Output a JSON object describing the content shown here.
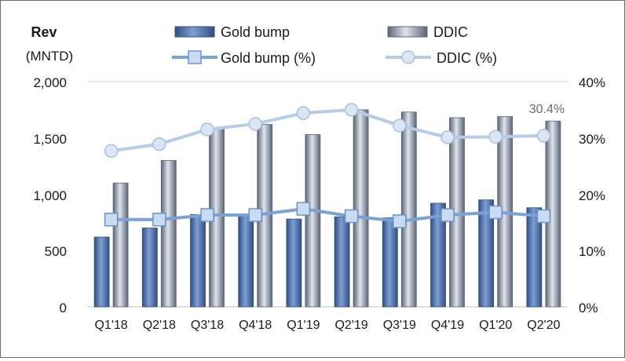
{
  "chart_data": {
    "type": "bar",
    "title": "",
    "ylabel": "Rev",
    "ylabel_unit": "(MNTD)",
    "categories": [
      "Q1'18",
      "Q2'18",
      "Q3'18",
      "Q4'18",
      "Q1'19",
      "Q2'19",
      "Q3'19",
      "Q4'19",
      "Q1'20",
      "Q2'20"
    ],
    "y_left_ticks": [
      "2,000",
      "1,500",
      "1,000",
      "500",
      "0"
    ],
    "y_right_ticks": [
      "40%",
      "30%",
      "20%",
      "10%",
      "0%"
    ],
    "ylim": [
      0,
      2000
    ],
    "y2lim": [
      0,
      40
    ],
    "grid": "horizontal-top-only",
    "legend_position": "top",
    "series": [
      {
        "name": "Gold bump",
        "kind": "bar",
        "axis": "left",
        "color": "#4f74b0",
        "values": [
          620,
          700,
          820,
          820,
          780,
          800,
          790,
          920,
          950,
          880
        ]
      },
      {
        "name": "DDIC",
        "kind": "bar",
        "axis": "left",
        "color": "#8c96a6",
        "values": [
          1100,
          1300,
          1580,
          1620,
          1530,
          1750,
          1730,
          1680,
          1690,
          1650
        ]
      },
      {
        "name": "Gold bump (%)",
        "kind": "line",
        "axis": "right",
        "color": "#7aa2d6",
        "marker": "square",
        "values": [
          15.5,
          15.5,
          16.3,
          16.3,
          17.4,
          16.1,
          15.2,
          16.3,
          16.8,
          16.1
        ]
      },
      {
        "name": "DDIC (%)",
        "kind": "line",
        "axis": "right",
        "color": "#b5cbe8",
        "marker": "circle",
        "values": [
          27.7,
          28.9,
          31.5,
          32.5,
          34.4,
          35.0,
          32.2,
          30.1,
          30.2,
          30.4
        ]
      }
    ],
    "annotations": [
      {
        "text": "30.4%",
        "category": "Q2'20",
        "series": "DDIC (%)"
      }
    ]
  }
}
